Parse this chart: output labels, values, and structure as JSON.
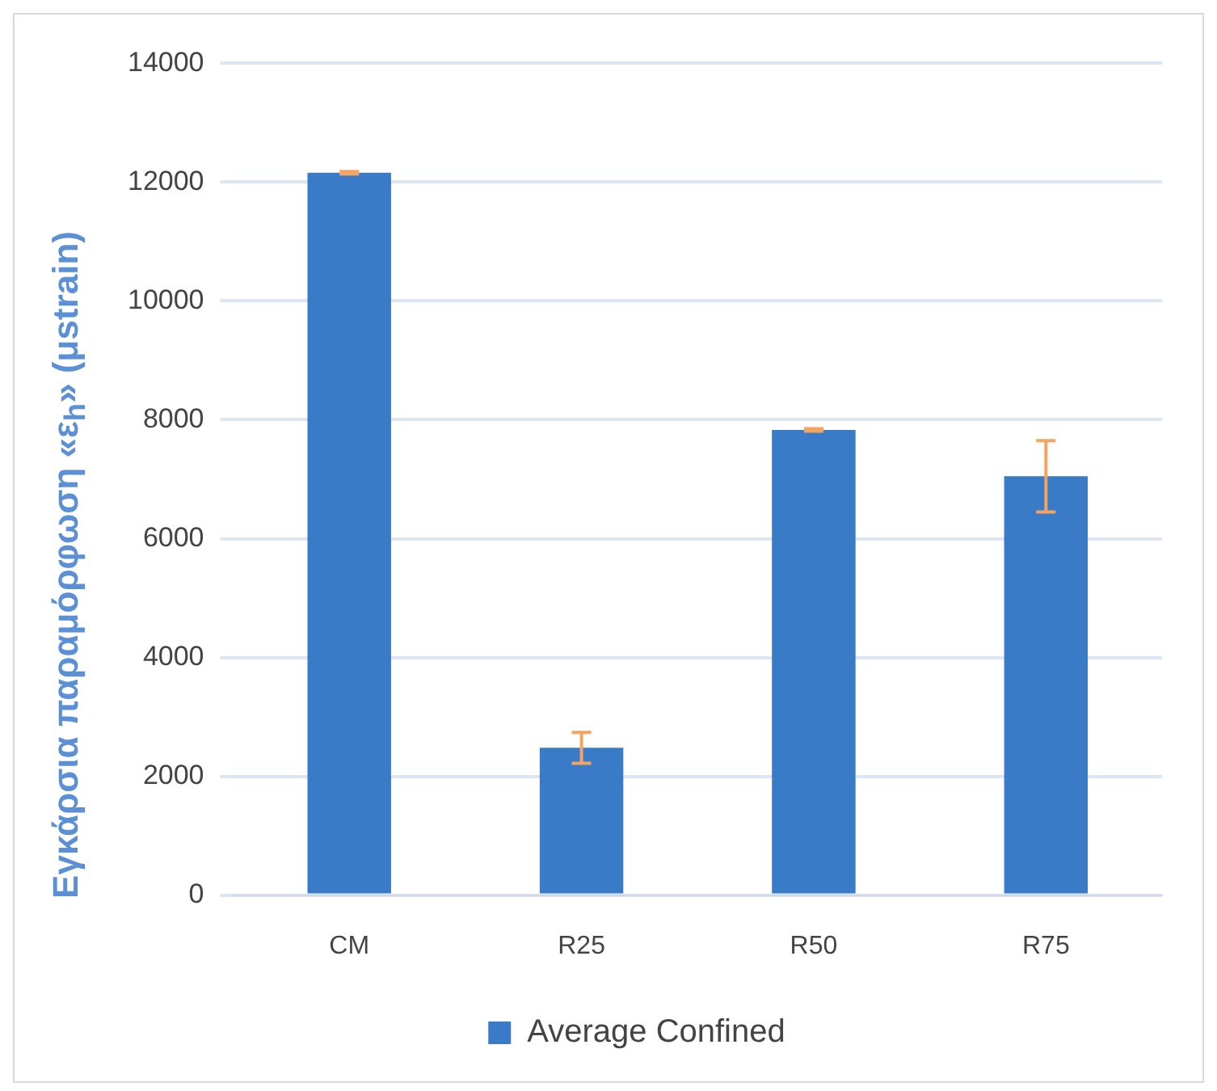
{
  "chart_data": {
    "type": "bar",
    "ylabel": "Εγκάρσια παραμόρφωση «ε$_{h}$» (μstrain)",
    "categories": [
      "CM",
      "R25",
      "R50",
      "R75"
    ],
    "series": [
      {
        "name": "Average Confined",
        "color": "#3a7bc8",
        "values": [
          12160,
          2480,
          7830,
          7050
        ],
        "errors": [
          20,
          260,
          20,
          600
        ]
      }
    ],
    "ylim": [
      0,
      14000
    ],
    "yticks": [
      0,
      2000,
      4000,
      6000,
      8000,
      10000,
      12000,
      14000
    ],
    "grid": "y",
    "legend": "bottom"
  }
}
